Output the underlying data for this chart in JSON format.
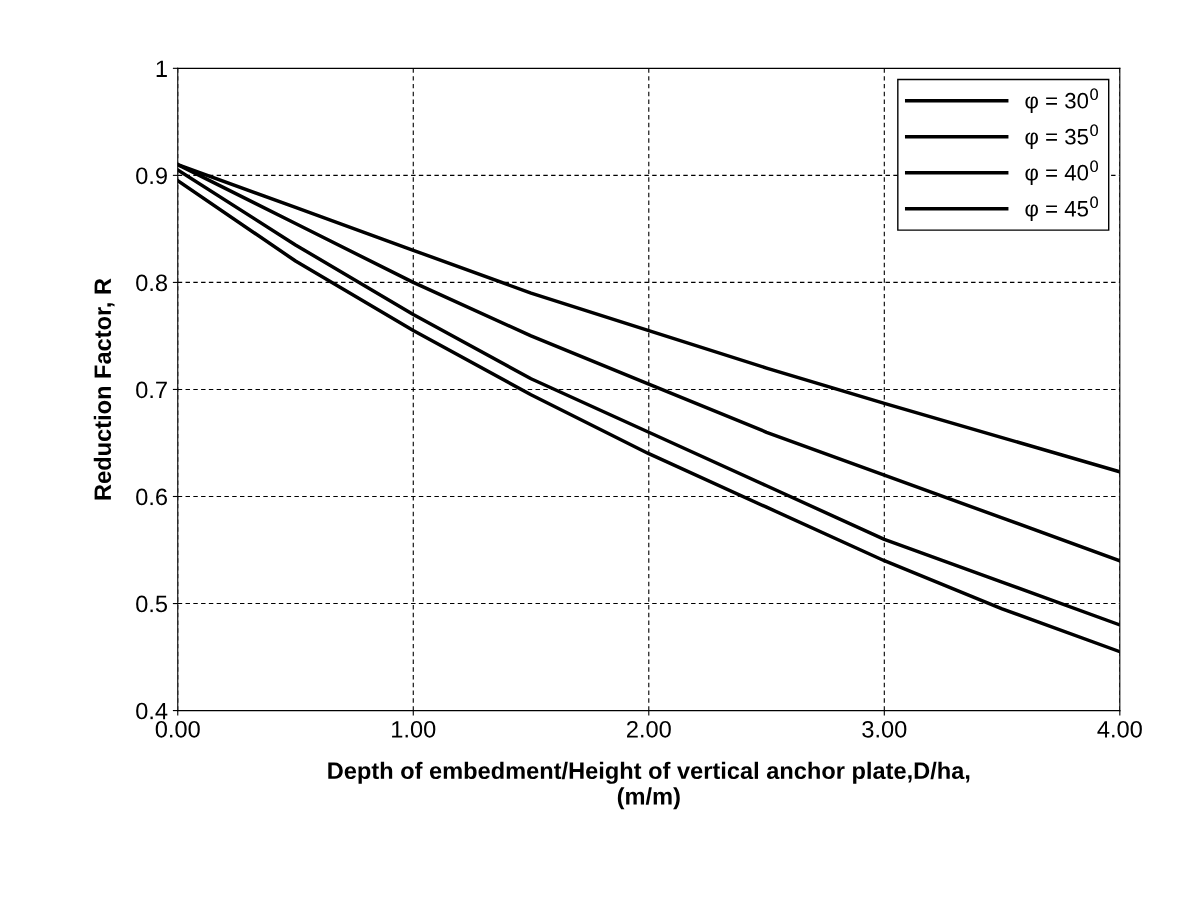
{
  "chart_data": {
    "type": "line",
    "xlabel": "Depth of embedment/Height of vertical anchor plate,D/ha,\n(m/m)",
    "ylabel": "Reduction Factor, R",
    "x": [
      0,
      0.5,
      1,
      1.5,
      2,
      2.5,
      3,
      3.5,
      4
    ],
    "series": [
      {
        "name": "φ = 30$^{0}$",
        "color": "#000000",
        "values": [
          0.895,
          0.82,
          0.755,
          0.695,
          0.64,
          0.59,
          0.54,
          0.495,
          0.455
        ]
      },
      {
        "name": "φ = 35$^{0}$",
        "color": "#000000",
        "values": [
          0.905,
          0.835,
          0.77,
          0.71,
          0.66,
          0.61,
          0.56,
          0.52,
          0.48
        ]
      },
      {
        "name": "φ = 40$^{0}$",
        "color": "#000000",
        "values": [
          0.91,
          0.855,
          0.8,
          0.75,
          0.705,
          0.66,
          0.62,
          0.58,
          0.54
        ]
      },
      {
        "name": "φ = 45$^{0}$",
        "color": "#000000",
        "values": [
          0.91,
          0.87,
          0.83,
          0.79,
          0.755,
          0.72,
          0.687,
          0.655,
          0.623
        ]
      }
    ],
    "xlim": [
      0,
      4
    ],
    "xticks": [
      {
        "value": 0,
        "label": "0.00"
      },
      {
        "value": 1,
        "label": "1.00"
      },
      {
        "value": 2,
        "label": "2.00"
      },
      {
        "value": 3,
        "label": "3.00"
      },
      {
        "value": 4,
        "label": "4.00"
      }
    ],
    "ylim": [
      0.4,
      1
    ],
    "yticks": [
      0.4,
      0.5,
      0.6,
      0.7,
      0.8,
      0.9,
      1
    ],
    "grid": true,
    "legend": "top right",
    "marker": "none",
    "line_style": "solid"
  }
}
